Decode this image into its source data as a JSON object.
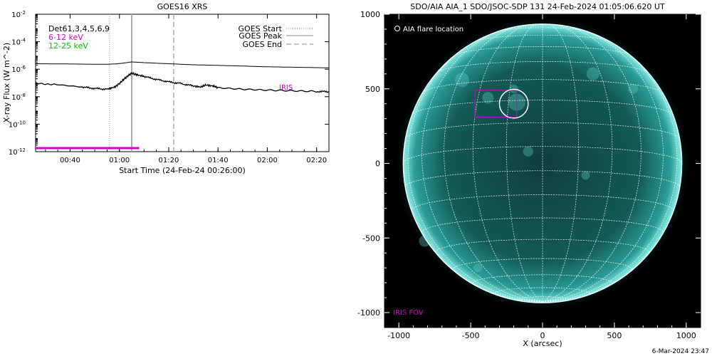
{
  "left_panel": {
    "title": "GOES16 XRS",
    "xlabel": "Start Time (24-Feb-24 00:26:00)",
    "ylabel": "X-ray Flux (W m^-2)",
    "legend_left": [
      {
        "text": "Det61,3,4,5,6,9",
        "color": "#000000"
      },
      {
        "text": "6-12 keV",
        "color": "#d000d0"
      },
      {
        "text": "12-25 keV",
        "color": "#00c000"
      }
    ],
    "legend_right": [
      {
        "text": "GOES Start",
        "style": "dotted"
      },
      {
        "text": "GOES Peak",
        "style": "solid"
      },
      {
        "text": "GOES End",
        "style": "dashed"
      }
    ],
    "iris_label": "IRIS"
  },
  "right_panel": {
    "title": "SDO/AIA AIA_1 SDO/JSOC-SDP 131 24-Feb-2024 01:05:06.620 UT",
    "xlabel": "X (arcsec)",
    "flare_label": "AIA flare location",
    "iris_fov_label": "IRIS FOV",
    "timestamp": "6-Mar-2024 23:47"
  },
  "chart_data": [
    {
      "type": "line",
      "title": "GOES16 XRS",
      "xlabel": "Start Time (24-Feb-24 00:26:00)",
      "ylabel": "X-ray Flux (W m^-2)",
      "y_scale": "log",
      "x_range_min": [
        26,
        145
      ],
      "ylim": [
        1e-12,
        0.01
      ],
      "x_ticks_min": [
        40,
        60,
        80,
        100,
        120,
        140
      ],
      "x_tick_labels": [
        "00:40",
        "01:00",
        "01:20",
        "01:40",
        "02:00",
        "02:20"
      ],
      "y_ticks": [
        1e-12,
        1e-10,
        1e-08,
        1e-06,
        0.0001,
        0.01
      ],
      "y_tick_labels": [
        "10^-12",
        "10^-10",
        "10^-8",
        "10^-6",
        "10^-4",
        "10^-2"
      ],
      "series": [
        {
          "color": "#000000",
          "x_min": [
            26,
            40,
            50,
            55,
            58,
            61,
            64,
            65,
            70,
            80,
            90,
            100,
            110,
            120,
            130,
            140,
            145
          ],
          "y": [
            2.5e-06,
            2.4e-06,
            2.3e-06,
            2.3e-06,
            2.4e-06,
            2.7e-06,
            3.2e-06,
            3.4e-06,
            3e-06,
            2.5e-06,
            2.1e-06,
            1.9e-06,
            1.7e-06,
            1.5e-06,
            1.4e-06,
            1.3e-06,
            1.25e-06
          ]
        },
        {
          "color": "#000000",
          "x_min": [
            26,
            35,
            45,
            50,
            55,
            58,
            60,
            62,
            64,
            65,
            67,
            70,
            75,
            80,
            85,
            90,
            93,
            95,
            98,
            100,
            110,
            120,
            130,
            140,
            145
          ],
          "y": [
            1e-07,
            7.5e-08,
            5e-08,
            4e-08,
            3.5e-08,
            5e-08,
            9e-08,
            2e-07,
            4e-07,
            5e-07,
            4e-07,
            3e-07,
            1.8e-07,
            1.2e-07,
            9e-08,
            6e-08,
            5e-08,
            7e-08,
            6e-08,
            4.5e-08,
            3.5e-08,
            3e-08,
            2.7e-08,
            2.4e-08,
            2.3e-08
          ]
        }
      ],
      "markers": {
        "goes_start_min": 56,
        "goes_peak_min": 65,
        "goes_end_min": 82
      },
      "iris_coverage": {
        "start_min": 26,
        "end_min": 68,
        "color": "#d000d0"
      }
    },
    {
      "type": "scatter",
      "title": "SDO/AIA AIA_1 SDO/JSOC-SDP 131 24-Feb-2024 01:05:06.620 UT",
      "xlabel": "X (arcsec)",
      "xlim": [
        -1100,
        1100
      ],
      "ylim": [
        -1100,
        1000
      ],
      "x_ticks": [
        -1000,
        -500,
        0,
        500,
        1000
      ],
      "y_ticks": [
        -1000,
        -500,
        0,
        500,
        1000
      ],
      "x_tick_labels": [
        "-1000",
        "-500",
        "0",
        "500",
        "1000"
      ],
      "y_tick_labels": [
        "-1000",
        "-500",
        "0",
        "500",
        "1000"
      ],
      "solar_radius_arcsec": 970,
      "flare_location": {
        "x": -200,
        "y": 400,
        "radius": 100
      },
      "iris_fov": {
        "x0": -470,
        "y0": 310,
        "x1": -180,
        "y1": 490
      }
    }
  ]
}
